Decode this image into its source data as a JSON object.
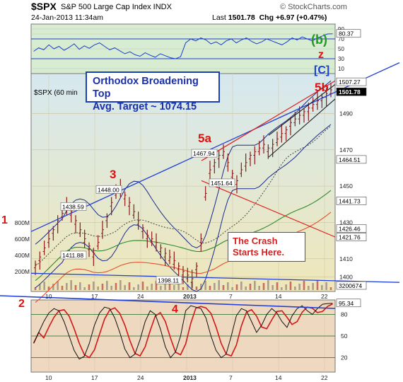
{
  "header": {
    "symbol": "$SPX",
    "description": "S&P 500 Large Cap Index INDX",
    "logo": "© StockCharts.com",
    "timestamp": "24-Jan-2013 11:34am",
    "last_label": "Last",
    "last_value": "1501.78",
    "chg_label": "Chg",
    "chg_value": "+6.97 (+0.47%)"
  },
  "annotations": {
    "box_line1": "Orthodox Broadening Top",
    "box_line2": "Avg. Target ~ 1074.15",
    "crash_line1": "The Crash",
    "crash_line2": "Starts Here.",
    "wave_1": "1",
    "wave_2": "2",
    "wave_3": "3",
    "wave_4": "4",
    "wave_5a": "5a",
    "wave_5b": "5b",
    "wave_b": "(b)",
    "wave_z": "z",
    "wave_c": "[C]",
    "price_legend": "$SPX (60 min"
  },
  "colors": {
    "top_panel_bg": "#d8ecd2",
    "price_bg_top": "#d6e8ef",
    "price_bg_bottom": "#efe7b8",
    "bottom_panel_bg": "#eed8c0",
    "price_bars": "#8b1a1a",
    "trend_blue": "#1f3fd8",
    "trend_red": "#e02020",
    "bollinger": "#1a2a8c",
    "ma_short": "#e85030",
    "ma_mid": "#2d8a2d",
    "ma_dotted": "#444444",
    "wave_red": "#e01010",
    "wave_green": "#1f9a1f",
    "wave_blue": "#1a3fd0",
    "rsi_line": "#1a3fd0",
    "osc_red": "#d01818"
  },
  "chart_data": [
    {
      "type": "line",
      "panel": "rsi",
      "y_ticks": [
        "90",
        "80",
        "70",
        "50",
        "30",
        "10"
      ],
      "ylim": [
        0,
        100
      ],
      "last_value_label": "80.37",
      "values": [
        45,
        52,
        48,
        58,
        50,
        55,
        47,
        53,
        60,
        49,
        56,
        51,
        58,
        62,
        55,
        48,
        52,
        46,
        40,
        44,
        38,
        35,
        42,
        37,
        33,
        40,
        36,
        32,
        30,
        34,
        62,
        70,
        66,
        72,
        68,
        60,
        64,
        58,
        66,
        70,
        62,
        68,
        72,
        65,
        60,
        64,
        70,
        66,
        62,
        58,
        64,
        72,
        68,
        74,
        70,
        66,
        72,
        76,
        80,
        80.37
      ]
    },
    {
      "type": "line",
      "panel": "price",
      "title": "$SPX (60 min",
      "x_tick_labels": [
        "10",
        "17",
        "24",
        "2013",
        "7",
        "14",
        "22"
      ],
      "y_ticks": [
        "1490",
        "1470",
        "1450",
        "1430",
        "1410",
        "1400"
      ],
      "ylim": [
        1392,
        1512
      ],
      "volume_ticks": [
        "800M",
        "600M",
        "400M",
        "200M"
      ],
      "value_labels": [
        "1507.27",
        "1501.78",
        "1464.51",
        "1441.73",
        "1426.46",
        "1421.76",
        "3200674"
      ],
      "price_annotations": [
        "1438.59",
        "1448.00",
        "1411.88",
        "1398.11",
        "1467.94",
        "1451.64"
      ],
      "series": [
        {
          "name": "$SPX",
          "values": [
            1406,
            1410,
            1415,
            1420,
            1425,
            1430,
            1434,
            1438,
            1435,
            1430,
            1425,
            1420,
            1416,
            1412,
            1418,
            1425,
            1432,
            1440,
            1446,
            1448,
            1444,
            1440,
            1435,
            1430,
            1426,
            1422,
            1420,
            1418,
            1415,
            1412,
            1410,
            1408,
            1405,
            1402,
            1400,
            1398,
            1405,
            1420,
            1445,
            1458,
            1462,
            1466,
            1468,
            1462,
            1456,
            1452,
            1458,
            1462,
            1466,
            1468,
            1470,
            1472,
            1470,
            1472,
            1475,
            1478,
            1480,
            1484,
            1486,
            1488,
            1490,
            1492,
            1494,
            1496,
            1498,
            1500,
            1502
          ]
        }
      ]
    },
    {
      "type": "line",
      "panel": "oscillator",
      "y_ticks": [
        "80",
        "50",
        "20"
      ],
      "ylim": [
        0,
        100
      ],
      "last_value_label": "95.34",
      "values": [
        40,
        55,
        70,
        82,
        88,
        85,
        70,
        50,
        30,
        18,
        22,
        40,
        65,
        82,
        90,
        88,
        75,
        55,
        32,
        20,
        25,
        45,
        70,
        85,
        80,
        60,
        35,
        20,
        28,
        50,
        85,
        92,
        90,
        88,
        75,
        50,
        30,
        20,
        25,
        50,
        78,
        88,
        85,
        70,
        55,
        65,
        80,
        88,
        82,
        70,
        62,
        78,
        88,
        92,
        85,
        80,
        88,
        94,
        95,
        95.34
      ]
    }
  ]
}
